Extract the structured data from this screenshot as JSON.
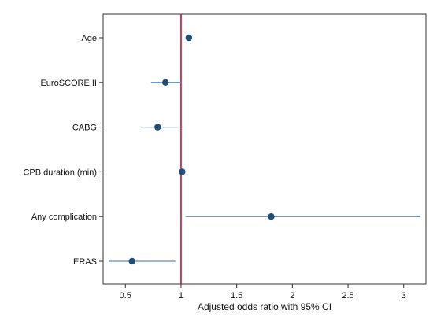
{
  "chart_data": {
    "type": "scatter",
    "subtype": "forest-plot",
    "title": "",
    "xlabel": "Adjusted odds ratio with 95% CI",
    "ylabel": "",
    "xlim": [
      0.3,
      3.2
    ],
    "xticks": [
      0.5,
      1,
      1.5,
      2,
      2.5,
      3
    ],
    "xtick_labels": [
      "0.5",
      "1",
      "1.5",
      "2",
      "2.5",
      "3"
    ],
    "grid": false,
    "reference_line": {
      "x": 1,
      "color": "#c8102e"
    },
    "colors": {
      "point": "#1f4e79",
      "ci_line": "#5b8db8",
      "frame": "#333333"
    },
    "rows": [
      {
        "label": "Age",
        "or": 1.07,
        "lower": 1.06,
        "upper": 1.08
      },
      {
        "label": "EuroSCORE II",
        "or": 0.86,
        "lower": 0.73,
        "upper": 1.0
      },
      {
        "label": "CABG",
        "or": 0.79,
        "lower": 0.64,
        "upper": 0.97
      },
      {
        "label": "CPB duration (min)",
        "or": 1.01,
        "lower": 1.0,
        "upper": 1.02
      },
      {
        "label": "Any complication",
        "or": 1.81,
        "lower": 1.04,
        "upper": 3.15
      },
      {
        "label": "ERAS",
        "or": 0.56,
        "lower": 0.35,
        "upper": 0.95
      }
    ]
  }
}
